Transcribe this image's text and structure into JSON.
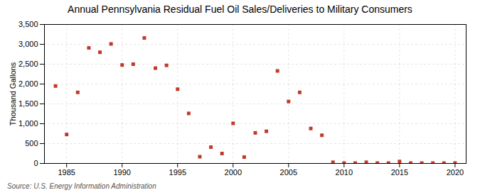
{
  "chart_data": {
    "type": "scatter",
    "title": "Annual Pennsylvania Residual Fuel Oil Sales/Deliveries to Military Consumers",
    "ylabel": "Thousand Gallons",
    "source": "Source: U.S. Energy Information Administration",
    "x": [
      1984,
      1985,
      1986,
      1987,
      1988,
      1989,
      1990,
      1991,
      1992,
      1993,
      1994,
      1995,
      1996,
      1997,
      1998,
      1999,
      2000,
      2001,
      2002,
      2003,
      2004,
      2005,
      2006,
      2007,
      2008,
      2009,
      2010,
      2011,
      2012,
      2013,
      2014,
      2015,
      2016,
      2017,
      2018,
      2019,
      2020
    ],
    "values": [
      1950,
      730,
      1790,
      2910,
      2800,
      3010,
      2480,
      2500,
      3160,
      2400,
      2470,
      1870,
      1260,
      170,
      410,
      250,
      1010,
      160,
      770,
      810,
      2330,
      1560,
      1790,
      880,
      710,
      30,
      10,
      10,
      30,
      10,
      10,
      50,
      10,
      10,
      10,
      10,
      10
    ],
    "color": "#c0392b",
    "marker": "square",
    "xlim": [
      1983,
      2021
    ],
    "xticks": [
      1985,
      1990,
      1995,
      2000,
      2005,
      2010,
      2015,
      2020
    ],
    "ylim": [
      0,
      3500
    ],
    "yticks": [
      0,
      500,
      {
        "value": 1000,
        "label": "1,000"
      },
      {
        "value": 1500,
        "label": "1,500"
      },
      {
        "value": 2000,
        "label": "2,000"
      },
      {
        "value": 2500,
        "label": "2,500"
      },
      {
        "value": 3000,
        "label": "3,000"
      },
      {
        "value": 3500,
        "label": "3,500"
      }
    ],
    "grid": true
  }
}
